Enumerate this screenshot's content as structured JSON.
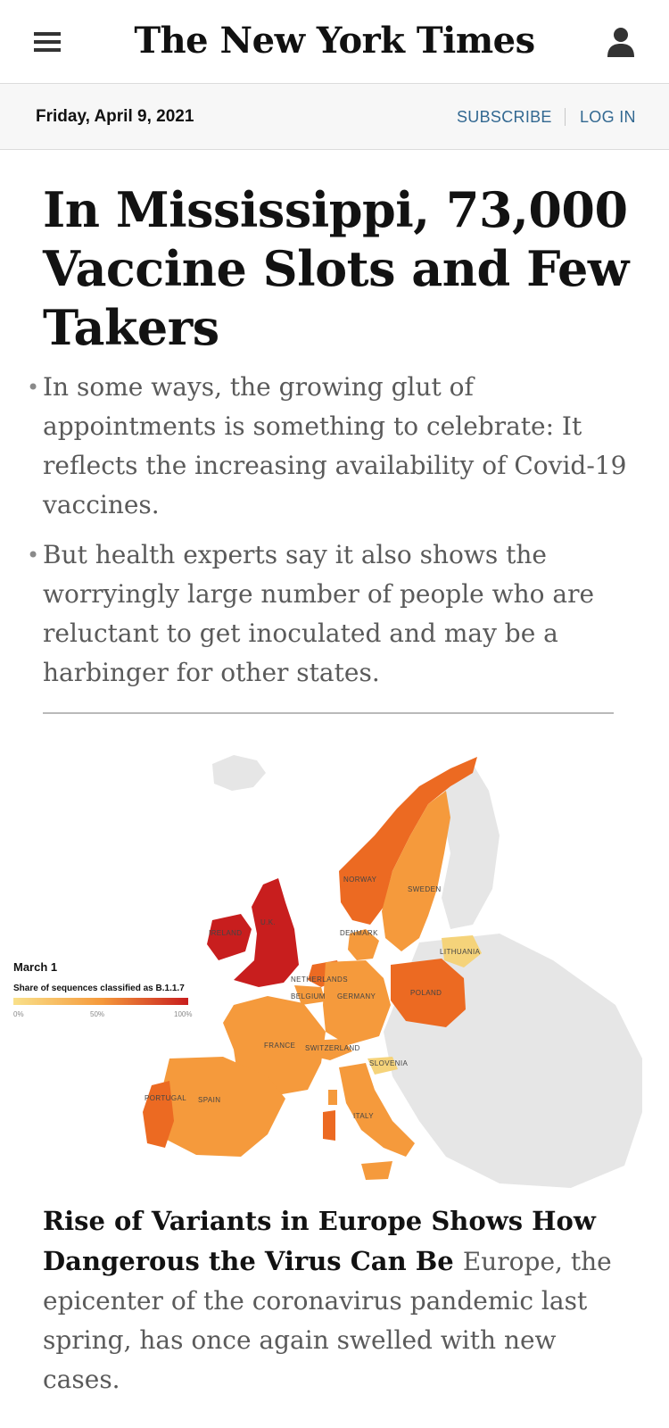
{
  "header": {
    "masthead": "The New York Times",
    "menu_icon": "hamburger-menu-icon",
    "account_icon": "user-icon"
  },
  "datebar": {
    "date": "Friday, April 9, 2021",
    "subscribe_label": "SUBSCRIBE",
    "login_label": "LOG IN"
  },
  "lead_story": {
    "headline": "In Mississippi, 73,000 Vaccine Slots and Few Takers",
    "summary": [
      "In some ways, the growing glut of appointments is something to celebrate: It reflects the increasing availability of Covid-19 vaccines.",
      "But health experts say it also shows the worryingly large number of people who are reluctant to get inoculated and may be a harbinger for other states."
    ]
  },
  "map": {
    "legend_title": "March 1",
    "legend_subtitle": "Share of sequences classified as B.1.1.7",
    "legend_ticks": [
      "0%",
      "50%",
      "100%"
    ],
    "countries": {
      "norway": "NORWAY",
      "sweden": "SWEDEN",
      "ireland": "IRELAND",
      "uk": "U.K.",
      "denmark": "DENMARK",
      "lithuania": "LITHUANIA",
      "netherlands": "NETHERLANDS",
      "belgium": "BELGIUM",
      "germany": "GERMANY",
      "poland": "POLAND",
      "france": "FRANCE",
      "switzerland": "SWITZERLAND",
      "slovenia": "SLOVENIA",
      "portugal": "PORTUGAL",
      "spain": "SPAIN",
      "italy": "ITALY"
    },
    "colors": {
      "no_data": "#e6e6e6",
      "low": "#f5d37a",
      "mid": "#f59a3c",
      "high": "#ec6a22",
      "max": "#c81e1e"
    }
  },
  "second_story": {
    "title": "Rise of Variants in Europe Shows How Dangerous the Virus Can Be",
    "summary": "Europe, the epicenter of the coronavirus pandemic last spring, has once again swelled with new cases."
  }
}
